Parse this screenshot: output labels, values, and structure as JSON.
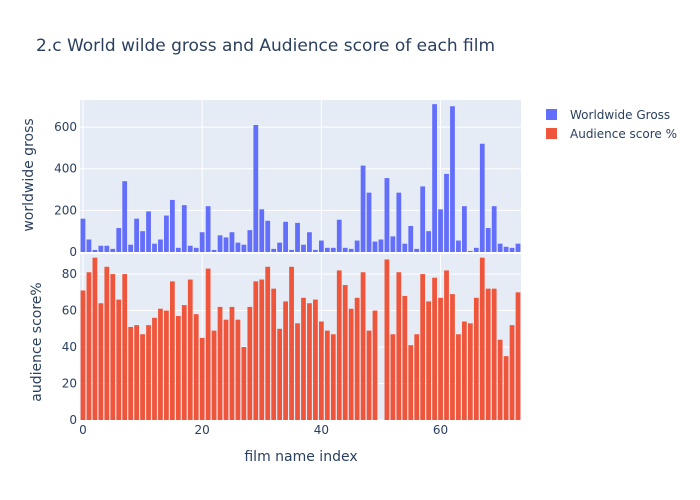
{
  "chart_data": {
    "type": "bar",
    "title": "2.c World wilde gross and Audience score of each film",
    "xlabel": "film name index",
    "xlim": [
      -0.5,
      73.5
    ],
    "x_ticks": [
      0,
      20,
      40,
      60
    ],
    "legend_position": "top-right",
    "grid": true,
    "subplots": [
      {
        "ylabel": "worldwide gross",
        "ylim": [
          0,
          730
        ],
        "y_ticks": [
          0,
          200,
          400,
          600
        ],
        "series": [
          {
            "name": "Worldwide Gross",
            "color": "#636efa",
            "values": [
              160,
              60,
              10,
              30,
              30,
              15,
              115,
              340,
              35,
              160,
              100,
              195,
              40,
              60,
              175,
              250,
              20,
              225,
              30,
              20,
              95,
              220,
              10,
              80,
              70,
              95,
              45,
              35,
              105,
              610,
              205,
              150,
              15,
              45,
              145,
              10,
              140,
              35,
              95,
              10,
              55,
              20,
              20,
              155,
              20,
              15,
              55,
              415,
              285,
              50,
              60,
              355,
              75,
              285,
              40,
              125,
              15,
              315,
              100,
              710,
              205,
              375,
              700,
              55,
              220,
              5,
              20,
              520,
              115,
              220,
              40,
              25,
              20,
              40
            ]
          }
        ]
      },
      {
        "ylabel": "audience score%",
        "ylim": [
          0,
          91
        ],
        "y_ticks": [
          0,
          20,
          40,
          60,
          80
        ],
        "series": [
          {
            "name": "Audience  score %",
            "color": "#ef553b",
            "values": [
              71,
              81,
              89,
              64,
              84,
              80,
              66,
              80,
              51,
              52,
              47,
              52,
              56,
              61,
              60,
              76,
              57,
              63,
              77,
              58,
              45,
              83,
              49,
              62,
              55,
              62,
              55,
              40,
              62,
              76,
              77,
              84,
              72,
              50,
              65,
              84,
              53,
              67,
              64,
              66,
              54,
              49,
              47,
              82,
              74,
              61,
              67,
              81,
              49,
              60,
              null,
              88,
              47,
              81,
              68,
              41,
              47,
              80,
              65,
              78,
              67,
              82,
              69,
              47,
              54,
              53,
              67,
              89,
              72,
              72,
              44,
              35,
              52,
              70
            ]
          }
        ]
      }
    ]
  }
}
